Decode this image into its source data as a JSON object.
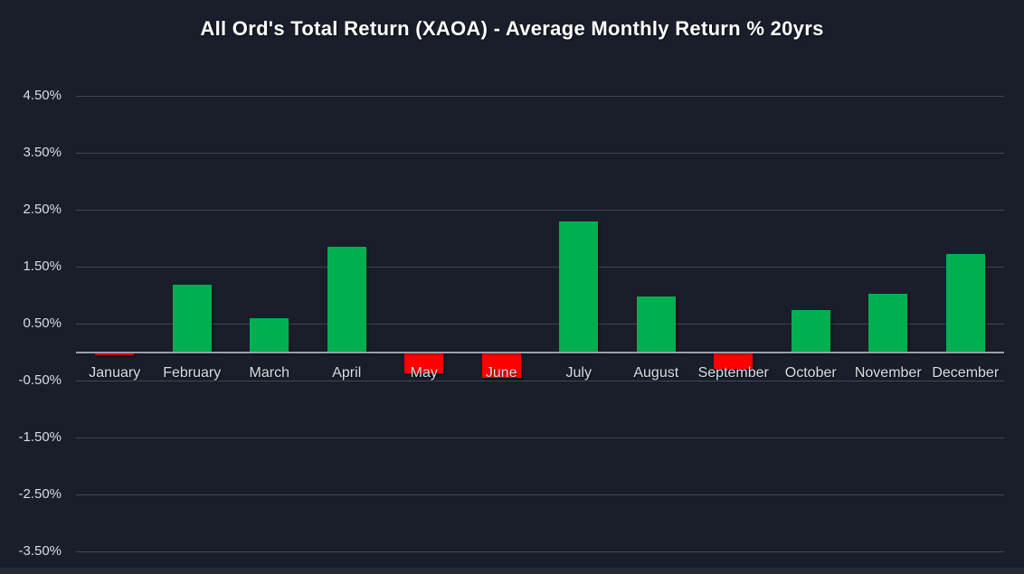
{
  "chart_data": {
    "type": "bar",
    "title": "All Ord's Total Return (XAOA) - Average Monthly Return % 20yrs",
    "categories": [
      "January",
      "February",
      "March",
      "April",
      "May",
      "June",
      "July",
      "August",
      "September",
      "October",
      "November",
      "December"
    ],
    "values": [
      -0.05,
      1.18,
      0.6,
      1.85,
      -0.37,
      -0.45,
      2.3,
      0.98,
      -0.3,
      0.74,
      1.02,
      1.72
    ],
    "unit": "%",
    "xlabel": "",
    "ylabel": "",
    "y_tick_labels": [
      "4.50%",
      "3.50%",
      "2.50%",
      "1.50%",
      "0.50%",
      "-0.50%",
      "-1.50%",
      "-2.50%",
      "-3.50%"
    ],
    "ylim": [
      -3.5,
      4.5
    ],
    "grid": true,
    "legend": false,
    "colors": {
      "positive": "#00B050",
      "negative": "#FF0000",
      "background": "#191E2A",
      "gridline": "#3F4654",
      "axis_line": "#99A0AB",
      "tick_text": "#D9DCE1",
      "title_text": "#FFFFFF"
    }
  }
}
